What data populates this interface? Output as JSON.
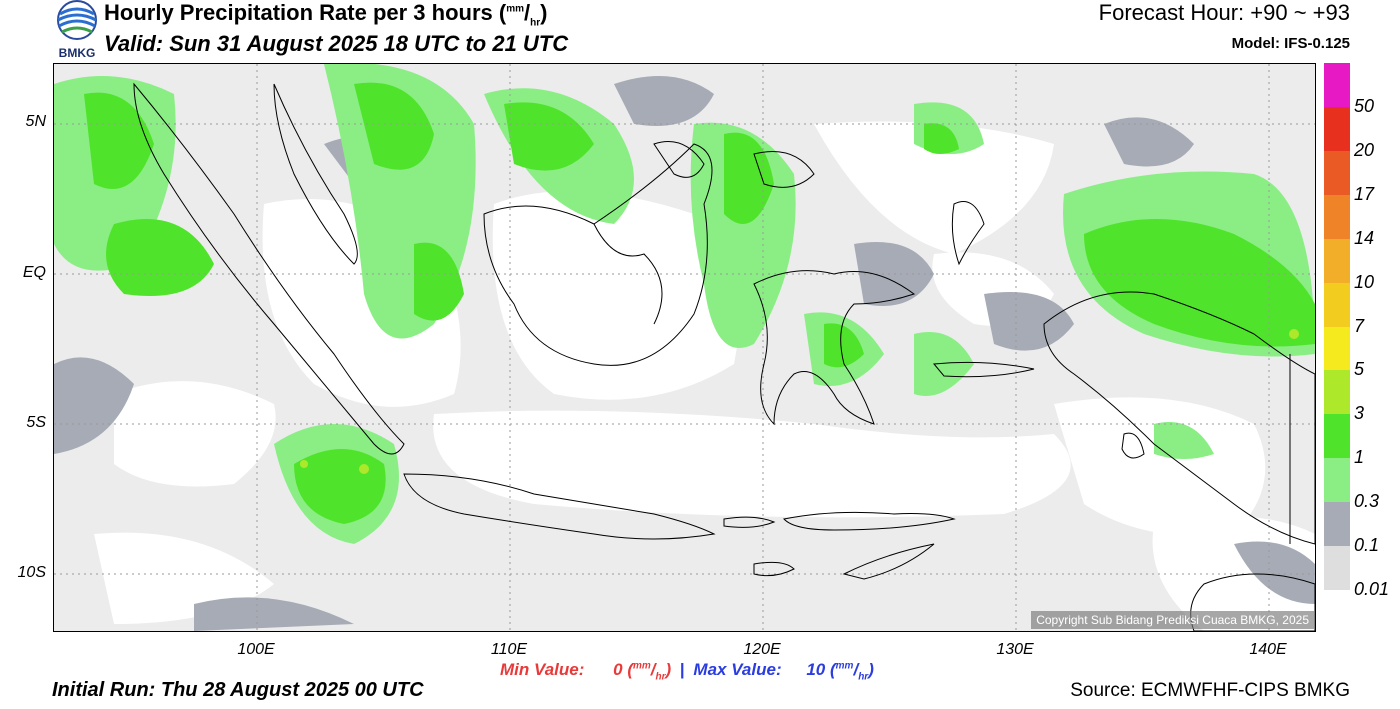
{
  "header": {
    "title_main": "Hourly Precipitation Rate per 3 hours (",
    "title_unit_num": "mm",
    "title_unit_sep": "/",
    "title_unit_den": "hr",
    "title_close": ")",
    "valid": "Valid: Sun 31 August 2025 18 UTC to 21 UTC",
    "forecast_hour": "Forecast Hour: +90 ~ +93",
    "model": "Model: IFS-0.125",
    "logo_text": "BMKG"
  },
  "map": {
    "y_ticks": [
      "5N",
      "EQ",
      "5S",
      "10S"
    ],
    "x_ticks": [
      "100E",
      "110E",
      "120E",
      "130E",
      "140E"
    ],
    "copyright": "Copyright Sub Bidang Prediksi Cuaca BMKG, 2025"
  },
  "stats": {
    "min_label": "Min Value:",
    "min_value": "0",
    "max_label": "Max Value:",
    "max_value": "10",
    "unit_num": "mm",
    "unit_den": "hr",
    "separator": "|"
  },
  "footer": {
    "initial_run": "Initial Run: Thu 28 August 2025 00 UTC",
    "source": "Source: ECMWFHF-CIPS BMKG"
  },
  "colorbar": {
    "labels": [
      "50",
      "20",
      "17",
      "14",
      "10",
      "7",
      "5",
      "3",
      "1",
      "0.3",
      "0.1",
      "0.01"
    ],
    "colors": [
      "#e619c4",
      "#e8301f",
      "#ea5a24",
      "#ee8327",
      "#f2ae28",
      "#f2cc1e",
      "#f4ea1e",
      "#ade82a",
      "#4fe42b",
      "#8aee85",
      "#a6abb5",
      "#dedede"
    ]
  }
}
